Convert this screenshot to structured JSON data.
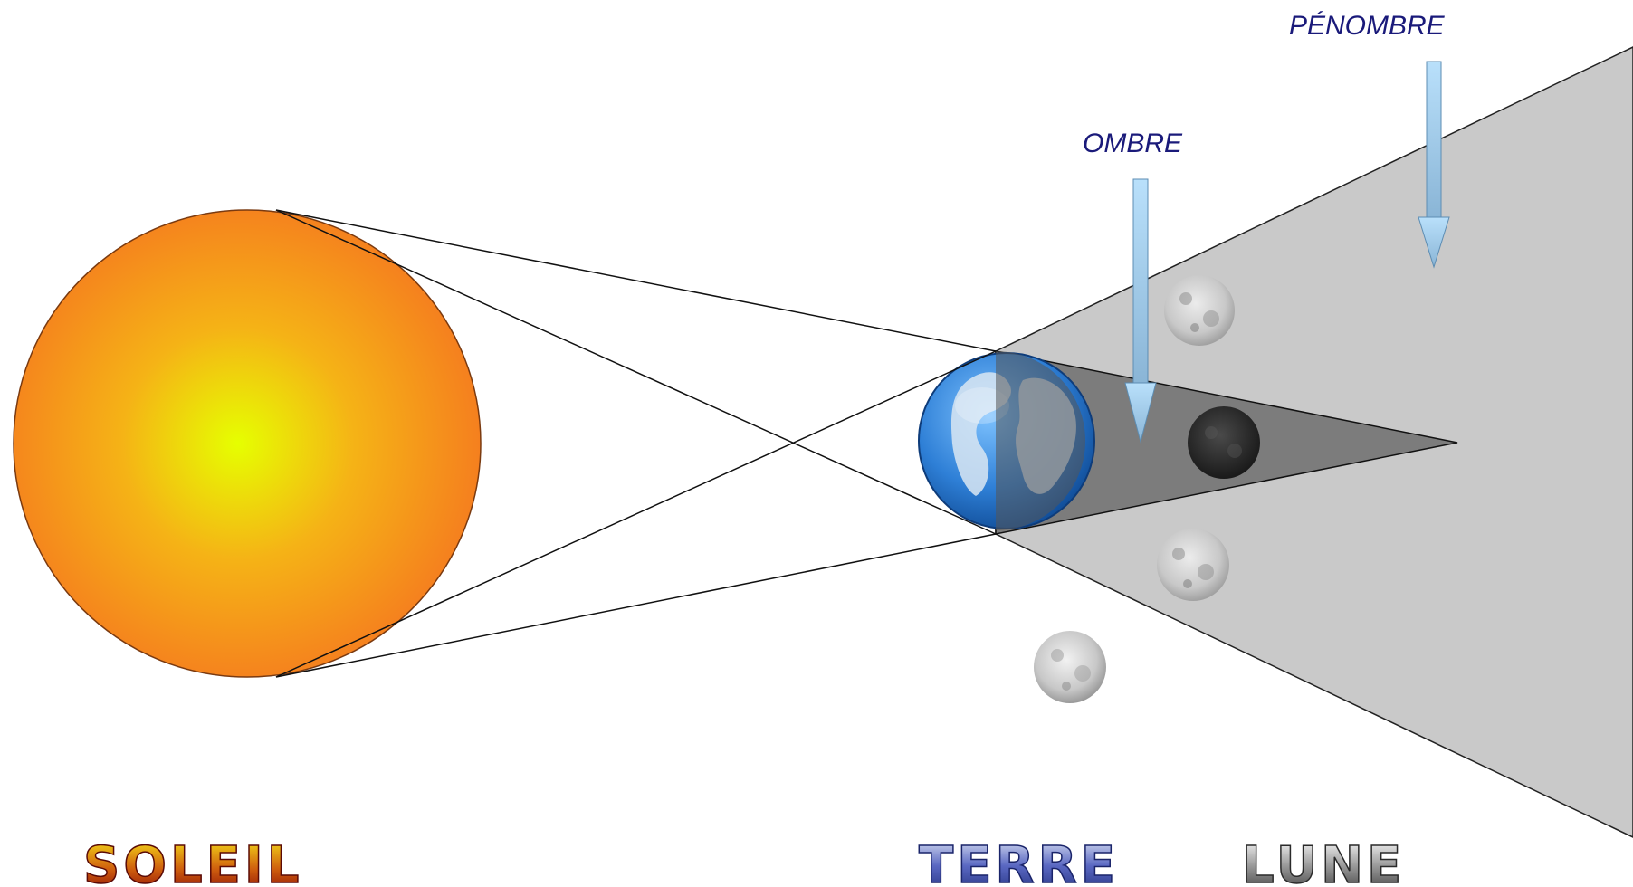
{
  "labels": {
    "penumbra": "PÉNOMBRE",
    "umbra": "OMBRE",
    "sun": "SOLEIL",
    "earth": "TERRE",
    "moon": "LUNE"
  },
  "colors": {
    "sun_center": "#e6ff00",
    "sun_edge": "#f57a1f",
    "penumbra_fill": "#c9c9c9",
    "umbra_fill": "#6e6e6e",
    "arrow_fill": "#a8d4f5",
    "callout_text": "#1a1a7a",
    "ocean": "#2e7fd6",
    "land": "#d9e6f2"
  },
  "icons": {
    "sun": "sun-disc",
    "earth": "earth-globe-icon",
    "moon": "moon-icon"
  }
}
